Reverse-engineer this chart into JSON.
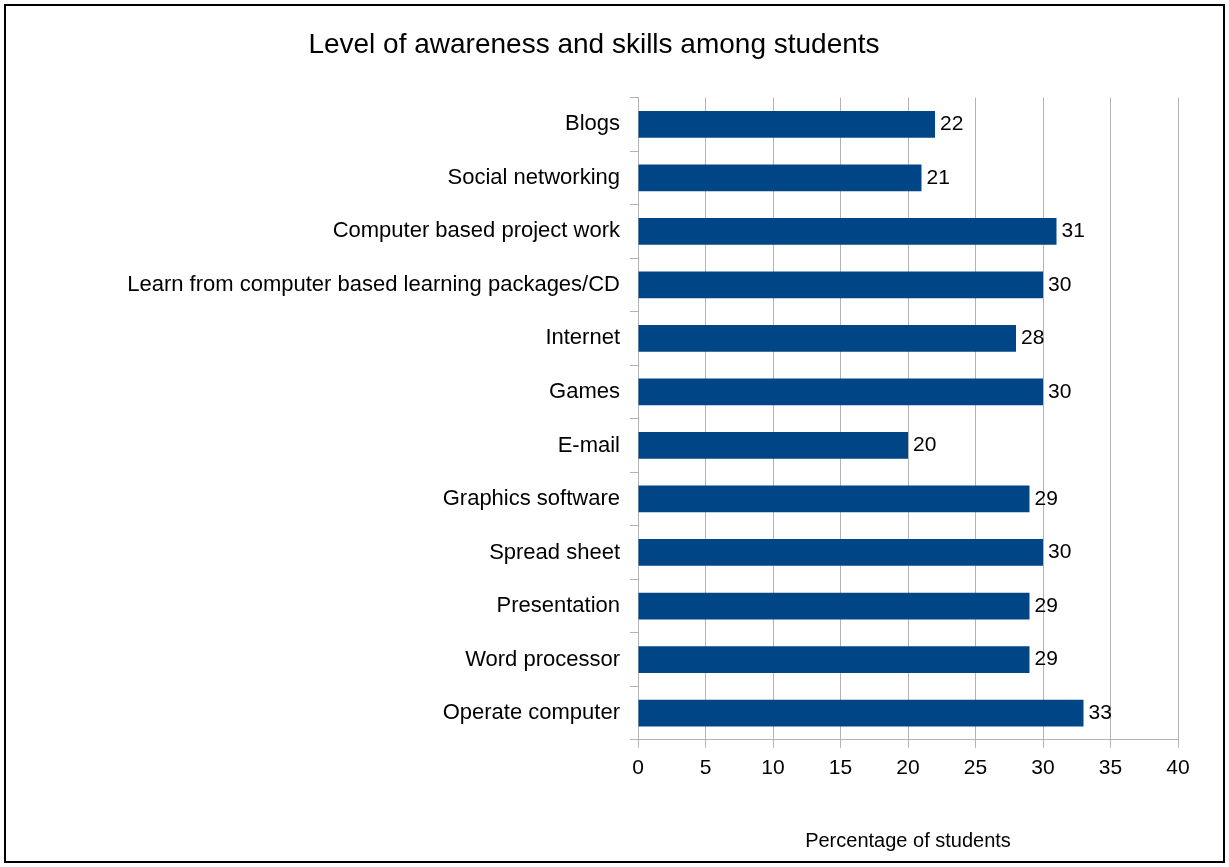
{
  "chart_data": {
    "type": "bar",
    "orientation": "horizontal",
    "title": "Level of awareness and skills among students",
    "xlabel": "Percentage of students",
    "categories": [
      "Blogs",
      "Social networking",
      "Computer based project work",
      "Learn from computer based learning packages/CD",
      "Internet",
      "Games",
      "E-mail",
      "Graphics software",
      "Spread sheet",
      "Presentation",
      "Word processor",
      "Operate computer"
    ],
    "values": [
      22,
      21,
      31,
      30,
      28,
      30,
      20,
      29,
      30,
      29,
      29,
      33
    ],
    "color": "#004586",
    "xlim": [
      0,
      40
    ],
    "xticks": [
      0,
      5,
      10,
      15,
      20,
      25,
      30,
      35,
      40
    ],
    "grid": "x",
    "legend": false,
    "data_labels": true
  }
}
